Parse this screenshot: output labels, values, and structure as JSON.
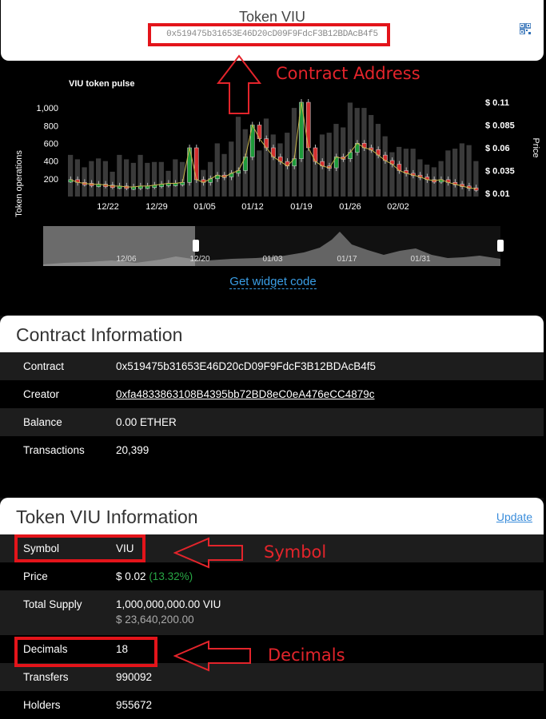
{
  "header": {
    "title": "Token VIU",
    "address": "0x519475b31653E46D20cD09F9FdcF3B12BDAcB4f5"
  },
  "annotations": {
    "contract_address": "Contract Address",
    "symbol": "Symbol",
    "decimals": "Decimals"
  },
  "chart": {
    "title": "VIU token pulse",
    "y_left_label": "Token operations",
    "y_right_label": "Price",
    "y_left_ticks": [
      "1,000",
      "800",
      "600",
      "400",
      "200"
    ],
    "y_right_ticks": [
      "$ 0.11",
      "$ 0.085",
      "$ 0.06",
      "$ 0.035",
      "$ 0.01"
    ],
    "x_ticks": [
      "12/22",
      "12/29",
      "01/05",
      "01/12",
      "01/19",
      "01/26",
      "02/02"
    ],
    "nav_ticks": [
      "12/06",
      "12/20",
      "01/03",
      "01/17",
      "01/31"
    ],
    "accent_color": "#c8b64a"
  },
  "chart_data": {
    "type": "bar",
    "title": "VIU token pulse",
    "ylabel": "Token operations",
    "y2label": "Price",
    "ylim": [
      0,
      1100
    ],
    "y2lim": [
      0.01,
      0.11
    ],
    "x_ticks": [
      "12/22",
      "12/29",
      "01/05",
      "01/12",
      "01/19",
      "01/26",
      "02/02"
    ],
    "series": [
      {
        "name": "Token operations",
        "values": [
          470,
          420,
          330,
          400,
          430,
          400,
          280,
          470,
          420,
          380,
          470,
          380,
          390,
          390,
          290,
          420,
          390,
          430,
          360,
          300,
          390,
          600,
          480,
          620,
          900,
          760,
          660,
          520,
          880,
          700,
          600,
          720,
          1000,
          900,
          520,
          480,
          700,
          720,
          820,
          780,
          1060,
          1000,
          1000,
          920,
          820,
          680,
          500,
          560,
          540,
          540,
          420,
          360,
          330,
          400,
          520,
          540,
          600,
          580,
          400
        ]
      },
      {
        "name": "Price",
        "values": [
          0.025,
          0.022,
          0.021,
          0.02,
          0.02,
          0.019,
          0.018,
          0.018,
          0.017,
          0.017,
          0.018,
          0.018,
          0.019,
          0.02,
          0.021,
          0.021,
          0.022,
          0.06,
          0.025,
          0.022,
          0.026,
          0.03,
          0.028,
          0.032,
          0.035,
          0.05,
          0.085,
          0.07,
          0.06,
          0.05,
          0.045,
          0.04,
          0.048,
          0.11,
          0.06,
          0.045,
          0.04,
          0.038,
          0.05,
          0.048,
          0.055,
          0.065,
          0.06,
          0.058,
          0.052,
          0.046,
          0.042,
          0.035,
          0.032,
          0.03,
          0.028,
          0.025,
          0.024,
          0.025,
          0.022,
          0.02,
          0.018,
          0.016,
          0.015
        ]
      }
    ]
  },
  "widget_link": "Get widget code",
  "contract_info": {
    "title": "Contract Information",
    "rows": [
      {
        "key": "Contract",
        "value": "0x519475b31653E46D20cD09F9FdcF3B12BDAcB4f5"
      },
      {
        "key": "Creator",
        "value": "0xfa4833863108B4395bb72BD8eC0eA476eCC4879c"
      },
      {
        "key": "Balance",
        "value": "0.00 ETHER"
      },
      {
        "key": "Transactions",
        "value": "20,399"
      }
    ]
  },
  "token_info": {
    "title": "Token VIU Information",
    "update_label": "Update",
    "symbol": {
      "key": "Symbol",
      "value": "VIU"
    },
    "price": {
      "key": "Price",
      "value": "$ 0.02",
      "change": "(13.32%)"
    },
    "supply": {
      "key": "Total Supply",
      "value": "1,000,000,000.00 VIU",
      "usd": "$ 23,640,200.00"
    },
    "decimals": {
      "key": "Decimals",
      "value": "18"
    },
    "transfers": {
      "key": "Transfers",
      "value": "990092"
    },
    "holders": {
      "key": "Holders",
      "value": "955672"
    }
  }
}
